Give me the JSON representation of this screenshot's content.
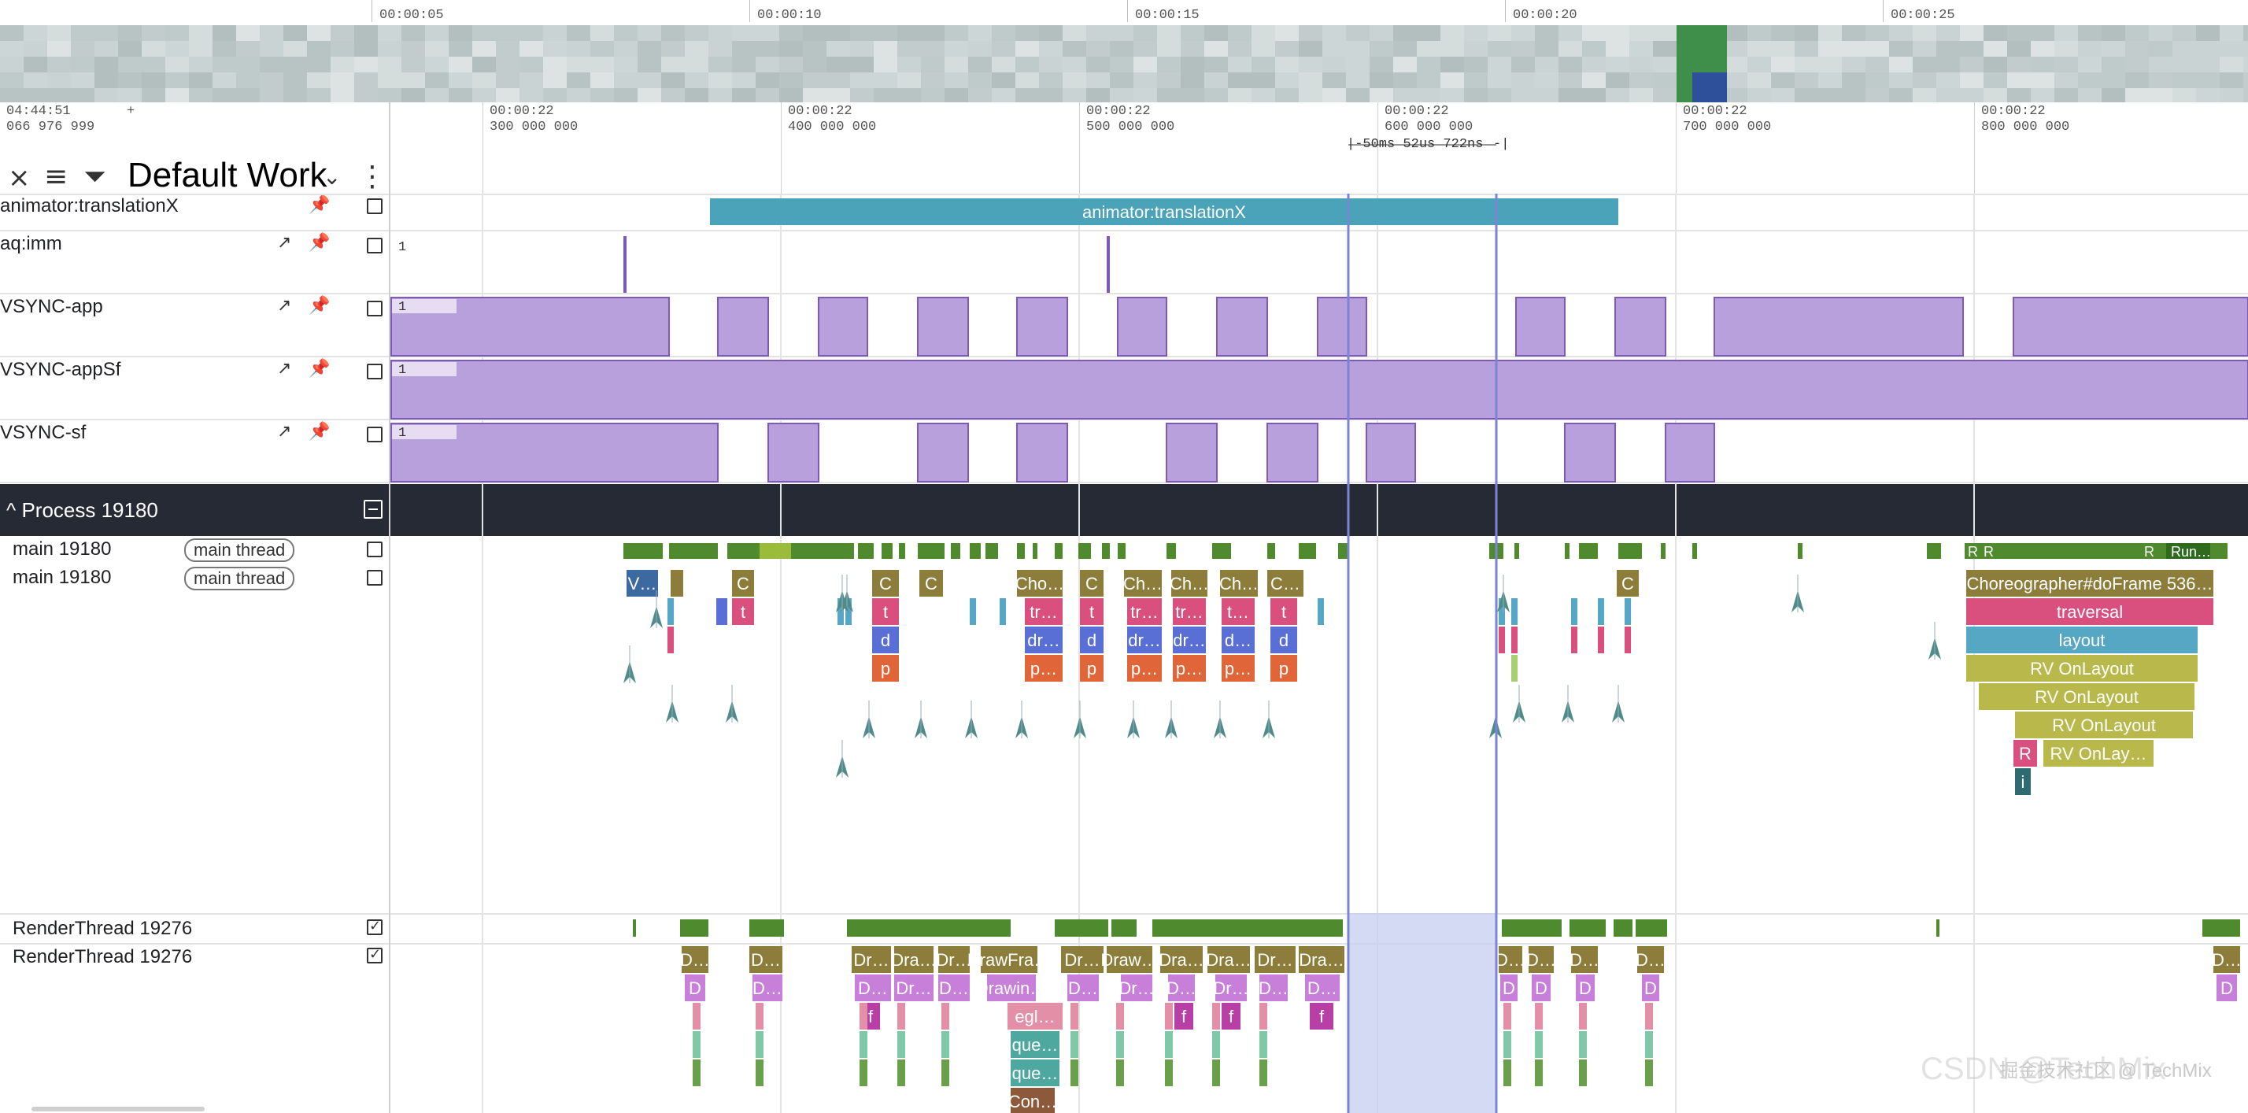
{
  "overview": {
    "labels": [
      "00:00:05",
      "00:00:10",
      "00:00:15",
      "00:00:20",
      "00:00:25"
    ]
  },
  "header": {
    "clock_line1": "04:44:51",
    "clock_plus": "+",
    "clock_line2": "066 976 999",
    "workspace_title": "Default Work",
    "icons": [
      "collapse-icon",
      "sort-icon",
      "filter-icon",
      "chevron-down-icon",
      "more-vert-icon"
    ]
  },
  "time_axis": {
    "ticks": [
      {
        "l1": "00:00:22",
        "l2": "300 000 000"
      },
      {
        "l1": "00:00:22",
        "l2": "400 000 000"
      },
      {
        "l1": "00:00:22",
        "l2": "500 000 000"
      },
      {
        "l1": "00:00:22",
        "l2": "600 000 000"
      },
      {
        "l1": "00:00:22",
        "l2": "700 000 000"
      },
      {
        "l1": "00:00:22",
        "l2": "800 000 000"
      }
    ],
    "selection_span": "50ms 52us 722ns"
  },
  "tracks": {
    "animator": {
      "label": "animator:translationX",
      "slice": "animator:translationX"
    },
    "aq_imm": {
      "label": "aq:imm",
      "value": "1"
    },
    "vsync_app": {
      "label": "VSYNC-app",
      "value": "1"
    },
    "vsync_appsf": {
      "label": "VSYNC-appSf",
      "value": "1"
    },
    "vsync_sf": {
      "label": "VSYNC-sf",
      "value": "1"
    }
  },
  "process": {
    "title": "Process 19180",
    "main_summary": {
      "label": "main 19180",
      "tag": "main thread",
      "run_text": "Run…",
      "r_labels": [
        "R",
        "R",
        "R"
      ]
    },
    "main_slices": {
      "label": "main 19180",
      "tag": "main thread"
    },
    "render_summary": {
      "label": "RenderThread 19276"
    },
    "render_slices": {
      "label": "RenderThread 19276"
    }
  },
  "main_slice_texts": [
    "V…",
    "C",
    "t",
    "C",
    "t",
    "d",
    "p",
    "C",
    "Cho…",
    "tr…",
    "dr…",
    "p…",
    "C",
    "t",
    "d",
    "p",
    "Ch…",
    "tr…",
    "dr…",
    "p…",
    "Ch…",
    "tr…",
    "dr…",
    "p…",
    "Ch…",
    "t…",
    "d…",
    "p…",
    "C…",
    "t",
    "d",
    "p",
    "C",
    "Choreographer#doFrame 536…",
    "traversal",
    "layout",
    "RV OnLayout",
    "RV OnLayout",
    "RV OnLayout",
    "R",
    "RV OnLay…",
    "i"
  ],
  "render_slice_texts": [
    "D…",
    "D",
    "D…",
    "D…",
    "Dr…",
    "Dra…",
    "Dr…",
    "DrawFra…",
    "Dr…",
    "Draw…",
    "Dra…",
    "Dra…",
    "Dr…",
    "Dra…",
    "D…",
    "Dr…",
    "D…",
    "Drawin…",
    "D…",
    "Dr…",
    "D…",
    "Dr…",
    "D…",
    "D…",
    "f",
    "f",
    "f",
    "f",
    "egl…",
    "que…",
    "que…",
    "Con…",
    "D…",
    "D…",
    "D…",
    "D…",
    "D",
    "D",
    "D",
    "D",
    "D…",
    "D"
  ],
  "colors": {
    "animator_slice": "#4aa3b8",
    "counter_fill": "#b7a0dc",
    "counter_stroke": "#7d5ab8",
    "process_header": "#262a34",
    "selection": "#7b85d6",
    "running": "#4f8a2f",
    "choreographer": "#8c7d3a",
    "traversal": "#d94f7d",
    "layout": "#56a7c4",
    "rvonlayout": "#b9b84b",
    "arrow": "#4e8b8a"
  },
  "watermark": "CSDN @TechMix",
  "watermark2": "掘金技术社区 @ TechMix"
}
